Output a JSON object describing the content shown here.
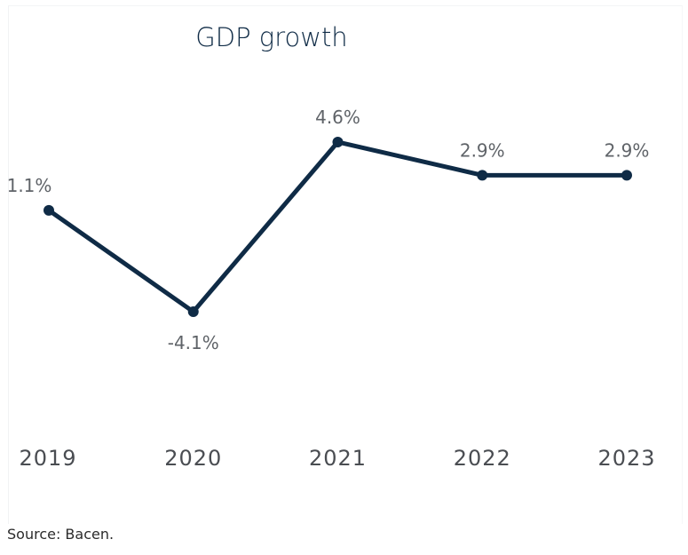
{
  "chart_data": {
    "type": "line",
    "title": "GDP growth",
    "xlabel": "",
    "ylabel": "",
    "categories": [
      "2019",
      "2020",
      "2021",
      "2022",
      "2023"
    ],
    "series": [
      {
        "values": [
          1.1,
          -4.1,
          4.6,
          2.9,
          2.9
        ],
        "labels": [
          "1.1%",
          "-4.1%",
          "4.6%",
          "2.9%",
          "2.9%"
        ],
        "color": "#0f2b46"
      }
    ],
    "ylim": [
      -4.1,
      4.6
    ],
    "grid": false,
    "legend": "none",
    "data_labels": true
  },
  "footer": {
    "source": "Source: Bacen."
  }
}
